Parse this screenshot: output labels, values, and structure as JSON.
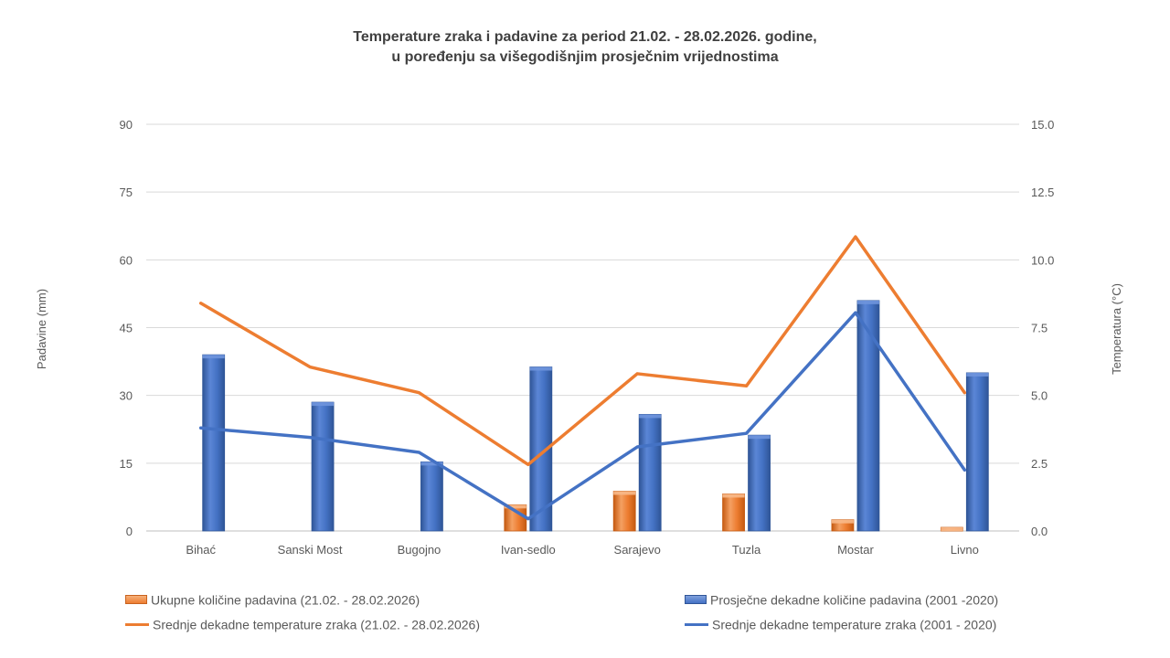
{
  "chart_data": {
    "type": "bar",
    "title_line1": "Temperature zraka i padavine za period 21.02. - 28.02.2026. godine,",
    "title_line2": "u poređenju sa višegodišnjim prosječnim vrijednostima",
    "categories": [
      "Bihać",
      "Sanski Most",
      "Bugojno",
      "Ivan-sedlo",
      "Sarajevo",
      "Tuzla",
      "Mostar",
      "Livno"
    ],
    "ylabel_left": "Padavine (mm)",
    "ylabel_right": "Temperatura (°C)",
    "ylim_left": [
      0,
      90
    ],
    "ylim_right": [
      0,
      15
    ],
    "yticks_left": [
      "0",
      "15",
      "30",
      "45",
      "60",
      "75",
      "90"
    ],
    "yticks_right": [
      "0.0",
      "2.5",
      "5.0",
      "7.5",
      "10.0",
      "12.5",
      "15.0"
    ],
    "grid": true,
    "series": [
      {
        "name": "Ukupne količine padavina (21.02. - 28.02.2026)",
        "kind": "bar",
        "axis": "left",
        "color": "#ED7D31",
        "values": [
          0,
          0,
          0,
          5.8,
          8.8,
          8.2,
          2.5,
          0.8
        ]
      },
      {
        "name": "Prosječne dekadne količine padavina (2001 -2020)",
        "kind": "bar",
        "axis": "left",
        "color": "#4472C4",
        "values": [
          39,
          28.5,
          15.3,
          36.3,
          25.8,
          21.2,
          51,
          35
        ]
      },
      {
        "name": "Srednje dekadne temperature zraka (21.02. - 28.02.2026)",
        "kind": "line",
        "axis": "right",
        "color": "#ED7D31",
        "values": [
          8.4,
          6.05,
          5.1,
          2.45,
          5.8,
          5.35,
          10.85,
          5.1
        ]
      },
      {
        "name": "Srednje dekadne temperature zraka (2001 - 2020)",
        "kind": "line",
        "axis": "right",
        "color": "#4472C4",
        "values": [
          3.8,
          3.45,
          2.9,
          0.45,
          3.1,
          3.6,
          8.05,
          2.25
        ]
      }
    ]
  }
}
